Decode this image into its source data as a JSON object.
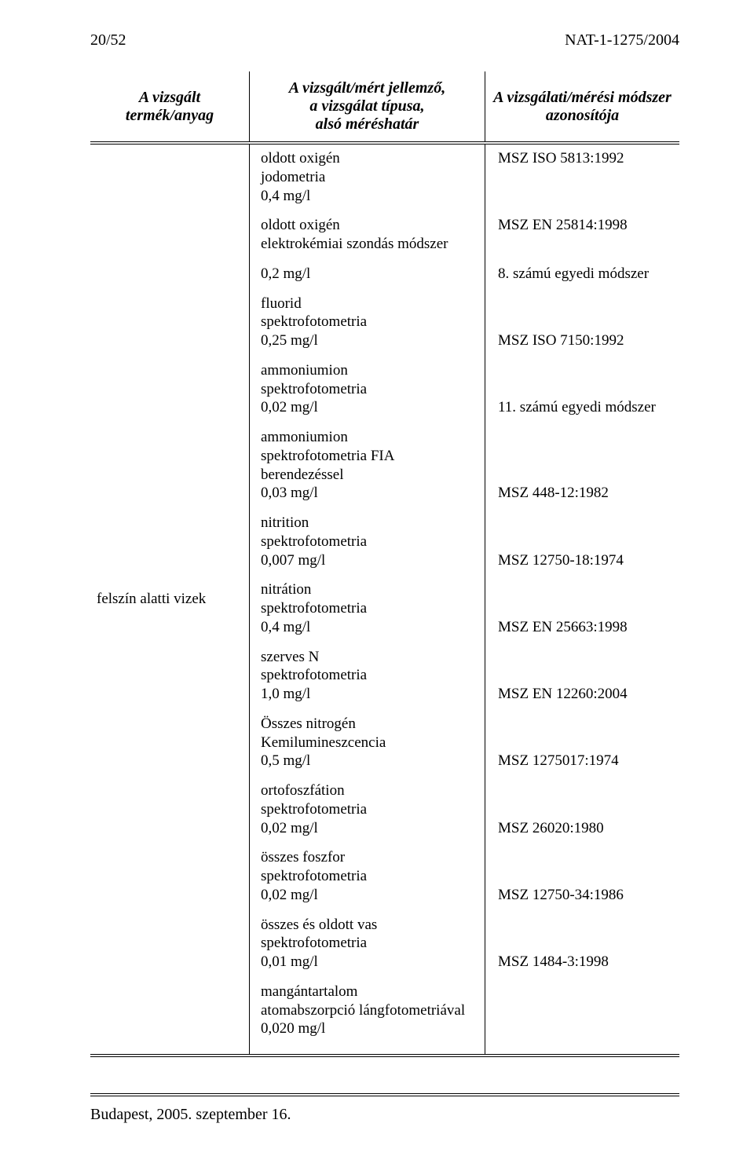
{
  "header": {
    "left": "20/52",
    "right": "NAT-1-1275/2004"
  },
  "table": {
    "columns": {
      "c1": "A vizsgált termék/anyag",
      "c2_l1": "A vizsgált/mért jellemző,",
      "c2_l2": "a vizsgálat típusa,",
      "c2_l3": "alsó méréshatár",
      "c3_l1": "A vizsgálati/mérési módszer",
      "c3_l2": "azonosítója"
    },
    "product": "felszín alatti vizek",
    "rows": [
      {
        "p": [
          "oldott oxigén",
          "jodometria",
          "0,4 mg/l"
        ],
        "m": "MSZ ISO 5813:1992"
      },
      {
        "p": [
          "oldott oxigén",
          "elektrokémiai szondás módszer"
        ],
        "m": "MSZ EN  25814:1998"
      },
      {
        "p": [
          "0,2 mg/l"
        ],
        "m": ""
      },
      {
        "p": [
          "fluorid",
          "spektrofotometria",
          "0,25 mg/l"
        ],
        "m": "8. számú egyedi módszer"
      },
      {
        "p": [
          "ammoniumion",
          "spektrofotometria",
          "0,02 mg/l"
        ],
        "m": "MSZ ISO 7150:1992"
      },
      {
        "p": [
          "ammoniumion",
          "spektrofotometria FIA",
          "berendezéssel",
          "0,03 mg/l"
        ],
        "m": "11. számú egyedi módszer"
      },
      {
        "p": [
          "nitrition",
          "spektrofotometria",
          "0,007 mg/l"
        ],
        "m": "MSZ 448-12:1982"
      },
      {
        "p": [
          "nitrátion",
          "spektrofotometria",
          "0,4 mg/l"
        ],
        "m": "MSZ 12750-18:1974"
      },
      {
        "p": [
          "szerves N",
          "spektrofotometria",
          "1,0 mg/l"
        ],
        "m": "MSZ EN 25663:1998"
      },
      {
        "p": [
          "Összes nitrogén",
          "Kemilumineszcencia",
          "0,5 mg/l"
        ],
        "m": "MSZ EN 12260:2004"
      },
      {
        "p": [
          "ortofoszfátion",
          "spektrofotometria",
          "0,02 mg/l"
        ],
        "m": "MSZ 1275017:1974"
      },
      {
        "p": [
          "összes foszfor",
          "spektrofotometria",
          "0,02 mg/l"
        ],
        "m": "MSZ 26020:1980"
      },
      {
        "p": [
          "összes és oldott vas",
          "spektrofotometria",
          "0,01 mg/l"
        ],
        "m": "MSZ 12750-34:1986"
      },
      {
        "p": [
          "mangántartalom",
          "atomabszorpció lángfotometriával",
          "0,020 mg/l"
        ],
        "m": "MSZ 1484-3:1998"
      }
    ]
  },
  "footer": "Budapest, 2005. szeptember 16."
}
